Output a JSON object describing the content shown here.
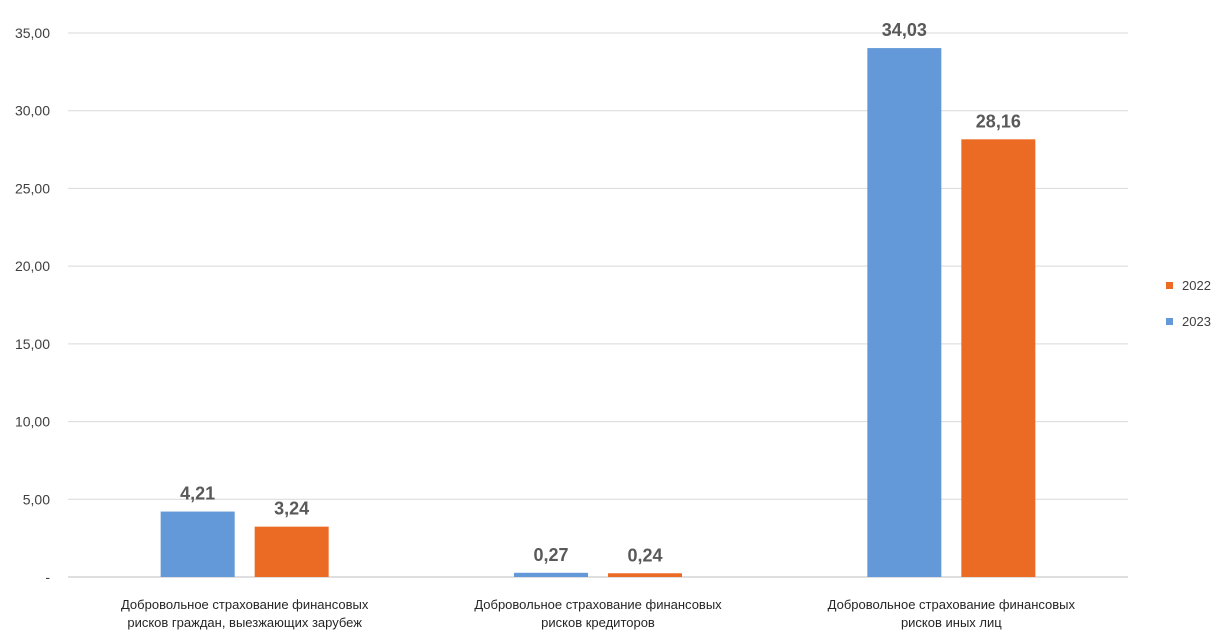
{
  "chart_data": {
    "type": "bar",
    "categories": [
      [
        "Добровольное страхование финансовых",
        "рисков граждан, выезжающих зарубеж"
      ],
      [
        "Добровольное страхование финансовых",
        "рисков кредиторов"
      ],
      [
        "Добровольное страхование финансовых",
        "рисков иных лиц"
      ]
    ],
    "series": [
      {
        "name": "2023",
        "color": "#6399d8",
        "values": [
          4.21,
          0.27,
          34.03
        ],
        "labels": [
          "4,21",
          "0,27",
          "34,03"
        ]
      },
      {
        "name": "2022",
        "color": "#ec6b24",
        "values": [
          3.24,
          0.24,
          28.16
        ],
        "labels": [
          "3,24",
          "0,24",
          "28,16"
        ]
      }
    ],
    "legend_order": [
      "2022",
      "2023"
    ],
    "legend_position": "right",
    "ylim": [
      0,
      35
    ],
    "yticks": [
      0,
      5,
      10,
      15,
      20,
      25,
      30,
      35
    ],
    "ytick_labels": [
      "-",
      "5,00",
      "10,00",
      "15,00",
      "20,00",
      "25,00",
      "30,00",
      "35,00"
    ],
    "grid": true,
    "title": "",
    "xlabel": "",
    "ylabel": ""
  }
}
